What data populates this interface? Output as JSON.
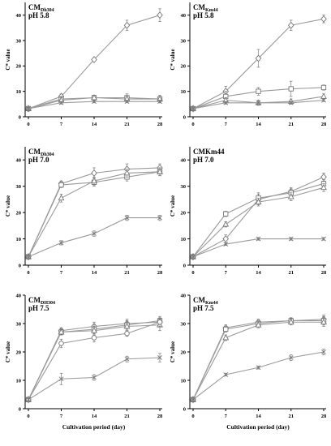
{
  "chart_data": [
    {
      "type": "line",
      "title_main": "CM",
      "title_sub": "Dh304",
      "title_line2": "pH 5.8",
      "ylabel": "C* value",
      "xlabel": "",
      "x": [
        0,
        7,
        14,
        21,
        28
      ],
      "xticks": [
        "0",
        "7",
        "14",
        "21",
        "28"
      ],
      "ylim": [
        0,
        45
      ],
      "yticks": [
        "0",
        "10",
        "20",
        "30",
        "40"
      ],
      "series": [
        {
          "marker": "diamond",
          "values": [
            3.2,
            8,
            22.5,
            36,
            40
          ],
          "errors": [
            0.5,
            1,
            0.5,
            2,
            2.5
          ]
        },
        {
          "marker": "square",
          "values": [
            3.2,
            7,
            7.5,
            7.5,
            7
          ],
          "errors": [
            0.5,
            1,
            1,
            1.5,
            1.5
          ]
        },
        {
          "marker": "triangle",
          "values": [
            3.2,
            6.5,
            7.5,
            7,
            7
          ],
          "errors": [
            0.5,
            1,
            1,
            1,
            1
          ]
        },
        {
          "marker": "cross",
          "values": [
            3.2,
            5.5,
            6,
            6,
            6
          ],
          "errors": [
            0.5,
            0.5,
            0.5,
            0.5,
            0.5
          ]
        }
      ]
    },
    {
      "type": "line",
      "title_main": "CM",
      "title_sub": "Km44",
      "title_line2": "pH 5.8",
      "ylabel": "C* value",
      "xlabel": "",
      "x": [
        0,
        7,
        14,
        21,
        28
      ],
      "xticks": [
        "0",
        "7",
        "14",
        "21",
        "28"
      ],
      "ylim": [
        0,
        45
      ],
      "yticks": [
        "0",
        "10",
        "20",
        "30",
        "40"
      ],
      "series": [
        {
          "marker": "diamond",
          "values": [
            3.2,
            10,
            23,
            36,
            38.5
          ],
          "errors": [
            0.5,
            2,
            3.5,
            2,
            1.5
          ]
        },
        {
          "marker": "square",
          "values": [
            3.2,
            8,
            10,
            11,
            11.5
          ],
          "errors": [
            0.5,
            2,
            1.5,
            3,
            1
          ]
        },
        {
          "marker": "triangle",
          "values": [
            3.2,
            6.5,
            5.5,
            6,
            8
          ],
          "errors": [
            0.5,
            1,
            1,
            1,
            1
          ]
        },
        {
          "marker": "cross",
          "values": [
            3.2,
            5.5,
            5.5,
            5.5,
            6.5
          ],
          "errors": [
            0.5,
            0.5,
            0.5,
            0.5,
            0.5
          ]
        }
      ]
    },
    {
      "type": "line",
      "title_main": "CM",
      "title_sub": "Dh304",
      "title_line2": "pH 7.0",
      "ylabel": "C* value",
      "xlabel": "",
      "x": [
        0,
        7,
        14,
        21,
        28
      ],
      "xticks": [
        "0",
        "7",
        "14",
        "21",
        "28"
      ],
      "ylim": [
        0,
        45
      ],
      "yticks": [
        "0",
        "10",
        "20",
        "30",
        "40"
      ],
      "series": [
        {
          "marker": "diamond",
          "values": [
            3.2,
            31,
            35,
            36.5,
            37
          ],
          "errors": [
            0.5,
            1,
            2,
            2,
            1.5
          ]
        },
        {
          "marker": "square",
          "values": [
            3.2,
            30.5,
            31.5,
            33.5,
            35.5
          ],
          "errors": [
            0.5,
            1,
            1.5,
            1.5,
            1.5
          ]
        },
        {
          "marker": "triangle",
          "values": [
            3.2,
            25.5,
            32,
            35,
            35.5
          ],
          "errors": [
            0.5,
            1.5,
            1.5,
            1.5,
            1.5
          ]
        },
        {
          "marker": "cross",
          "values": [
            3.2,
            8.5,
            12,
            18,
            18
          ],
          "errors": [
            0.5,
            0.8,
            1,
            1,
            1
          ]
        }
      ]
    },
    {
      "type": "line",
      "title_main": "CMKm44",
      "title_sub": "",
      "title_line2": "pH 7.0",
      "ylabel": "C* value",
      "xlabel": "",
      "x": [
        0,
        7,
        14,
        21,
        28
      ],
      "xticks": [
        "0",
        "7",
        "14",
        "21",
        "28"
      ],
      "ylim": [
        0,
        45
      ],
      "yticks": [
        "0",
        "10",
        "20",
        "30",
        "40"
      ],
      "series": [
        {
          "marker": "diamond",
          "values": [
            3.2,
            10,
            25,
            28,
            33.5
          ],
          "errors": [
            0.5,
            1.5,
            2,
            1.5,
            1.5
          ]
        },
        {
          "marker": "square",
          "values": [
            3.2,
            19.5,
            25.5,
            27.5,
            31
          ],
          "errors": [
            0.5,
            1,
            2,
            1.5,
            1.5
          ]
        },
        {
          "marker": "triangle",
          "values": [
            3.2,
            15.5,
            24,
            26,
            29.5
          ],
          "errors": [
            0.5,
            1,
            1.5,
            1.5,
            1.5
          ]
        },
        {
          "marker": "cross",
          "values": [
            3.2,
            8,
            10,
            10,
            10
          ],
          "errors": [
            0.5,
            0.5,
            0.5,
            0.5,
            0.5
          ]
        }
      ]
    },
    {
      "type": "line",
      "title_main": "CM",
      "title_sub": "DH304",
      "title_line2": "pH 7.5",
      "ylabel": "C* value",
      "xlabel": "Cultivation period (day)",
      "x": [
        0,
        7,
        14,
        21,
        28
      ],
      "xticks": [
        "0",
        "7",
        "14",
        "21",
        "28"
      ],
      "ylim": [
        0,
        40
      ],
      "yticks": [
        "0",
        "10",
        "20",
        "30",
        "40"
      ],
      "series": [
        {
          "marker": "diamond",
          "values": [
            3.2,
            27.5,
            29,
            30,
            30.5
          ],
          "errors": [
            0.5,
            1,
            1.5,
            1.5,
            1.5
          ]
        },
        {
          "marker": "square",
          "values": [
            3.2,
            27,
            28,
            29.5,
            31
          ],
          "errors": [
            0.5,
            1,
            1.5,
            1.5,
            1.5
          ]
        },
        {
          "marker": "triangle",
          "values": [
            3.2,
            27,
            27.5,
            29,
            29.5
          ],
          "errors": [
            0.5,
            1,
            1.5,
            1.5,
            2
          ]
        },
        {
          "marker": "circle",
          "values": [
            3.2,
            23,
            25,
            26.5,
            30.5
          ],
          "errors": [
            0.5,
            1.5,
            1.5,
            1,
            1.5
          ]
        },
        {
          "marker": "cross",
          "values": [
            3.2,
            10.5,
            11,
            17.5,
            18
          ],
          "errors": [
            0.5,
            2,
            1,
            1,
            1.5
          ]
        }
      ]
    },
    {
      "type": "line",
      "title_main": "CM",
      "title_sub": "Km44",
      "title_line2": "pH 7.5",
      "ylabel": "C* value",
      "xlabel": "Cultivation period (day)",
      "x": [
        0,
        7,
        14,
        21,
        28
      ],
      "xticks": [
        "0",
        "7",
        "14",
        "21",
        "28"
      ],
      "ylim": [
        0,
        40
      ],
      "yticks": [
        "0",
        "10",
        "20",
        "30",
        "40"
      ],
      "series": [
        {
          "marker": "diamond",
          "values": [
            3.2,
            28.5,
            30.5,
            31,
            31.5
          ],
          "errors": [
            0.5,
            1,
            1,
            1,
            1.5
          ]
        },
        {
          "marker": "square",
          "values": [
            3.2,
            28,
            30,
            31,
            31
          ],
          "errors": [
            0.5,
            1,
            1,
            1,
            1.5
          ]
        },
        {
          "marker": "triangle",
          "values": [
            3.2,
            25,
            29.5,
            30.5,
            30.5
          ],
          "errors": [
            0.5,
            1,
            1,
            1,
            1.5
          ]
        },
        {
          "marker": "cross",
          "values": [
            3.2,
            12,
            14.5,
            18,
            20
          ],
          "errors": [
            0.5,
            0.5,
            0.5,
            1,
            1
          ]
        }
      ]
    }
  ]
}
